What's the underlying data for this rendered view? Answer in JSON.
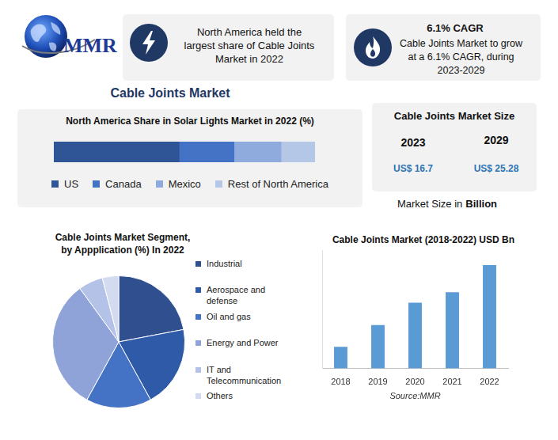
{
  "logo": "MMR",
  "callouts": [
    {
      "lines": [
        "North America held the",
        "largest share of Cable Joints",
        "Market in 2022"
      ]
    },
    {
      "title": "6.1% CAGR",
      "lines": [
        "Cable Joints Market to grow",
        "at a 6.1% CAGR, during",
        "2023-2029"
      ]
    }
  ],
  "main_title": "Cable Joints Market",
  "market_size": {
    "title": "Cable Joints Market Size",
    "columns": [
      {
        "year": "2023",
        "value": "US$ 16.7"
      },
      {
        "year": "2029",
        "value": "US$ 25.28"
      }
    ],
    "note": "Market Size in",
    "note_bold": "Billion"
  },
  "chart_data": [
    {
      "type": "bar",
      "title": "North America Share in Solar Lights Market in 2022 (%)",
      "orientation": "horizontal",
      "stacked": true,
      "categories": [
        null
      ],
      "series": [
        {
          "name": "US",
          "color": "#2f5597",
          "values": [
            48
          ]
        },
        {
          "name": "Canada",
          "color": "#4472c4",
          "values": [
            21
          ]
        },
        {
          "name": "Mexico",
          "color": "#8faadc",
          "values": [
            18
          ]
        },
        {
          "name": "Rest of North America",
          "color": "#b4c7e7",
          "values": [
            13
          ]
        }
      ],
      "xlim": [
        0,
        100
      ],
      "tick_labels": false,
      "grid": false,
      "legend": "bottom"
    },
    {
      "type": "pie",
      "title": "Cable Joints Market Segment, by Appplication (%) In 2022",
      "categories": [
        "Industrial",
        "Aerospace and defense",
        "Oil and gas",
        "Energy and Power",
        "IT and Telecommunication",
        "Others"
      ],
      "values": [
        22,
        20,
        16,
        32,
        6,
        4
      ],
      "colors": [
        "#2f4f8f",
        "#2f5aa8",
        "#4472c4",
        "#8fa3d8",
        "#b4c2e8",
        "#d3dbf0"
      ],
      "legend": "right"
    },
    {
      "type": "bar",
      "title": "Cable Joints Market (2018-2022) USD Bn",
      "categories": [
        "2018",
        "2019",
        "2020",
        "2021",
        "2022"
      ],
      "values": [
        3.3,
        6.6,
        10.0,
        11.6,
        15.7
      ],
      "color": "#5b9bd5",
      "ylim": [
        0,
        18
      ],
      "xlabel": "Source:MMR",
      "grid": false,
      "tick_labels": "x"
    }
  ]
}
